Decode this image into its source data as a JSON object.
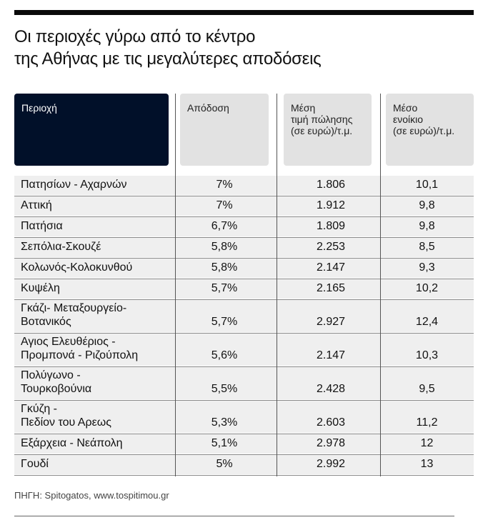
{
  "title": "Οι περιοχές γύρω από το κέντρο\nτης Αθήνας με τις μεγαλύτερες αποδόσεις",
  "title_lines": [
    "Οι περιοχές γύρω από το κέντρο",
    "της Αθήνας με τις μεγαλύτερες αποδόσεις"
  ],
  "header": {
    "area": "Περιοχή",
    "yield": "Απόδοση",
    "price": "Μέση\nτιμή πώλησης\n(σε ευρώ)/τ.μ.",
    "rent": "Μέσο\nενοίκιο\n(σε ευρώ)/τ.μ."
  },
  "header_color": "#011029",
  "rows": [
    {
      "area": "Πατησίων - Αχαρνών",
      "yield": "7%",
      "price": "1.806",
      "rent": "10,1"
    },
    {
      "area": "Αττική",
      "yield": "7%",
      "price": "1.912",
      "rent": "9,8"
    },
    {
      "area": "Πατήσια",
      "yield": "6,7%",
      "price": "1.809",
      "rent": "9,8"
    },
    {
      "area": "Σεπόλια-Σκουζέ",
      "yield": "5,8%",
      "price": "2.253",
      "rent": "8,5"
    },
    {
      "area": "Κολωνός-Κολοκυνθού",
      "yield": "5,8%",
      "price": "2.147",
      "rent": "9,3"
    },
    {
      "area": "Κυψέλη",
      "yield": "5,7%",
      "price": "2.165",
      "rent": "10,2"
    },
    {
      "area": "Γκάζι- Μεταξουργείο-\nΒοτανικός",
      "yield": "5,7%",
      "price": "2.927",
      "rent": "12,4"
    },
    {
      "area": "Αγιος Ελευθέριος -\nΠρομπονά - Ριζούπολη",
      "yield": "5,6%",
      "price": "2.147",
      "rent": "10,3"
    },
    {
      "area": "Πολύγωνο -\nΤουρκοβούνια",
      "yield": "5,5%",
      "price": "2.428",
      "rent": "9,5"
    },
    {
      "area": "Γκύζη -\nΠεδίον του Αρεως",
      "yield": "5,3%",
      "price": "2.603",
      "rent": "11,2"
    },
    {
      "area": "Εξάρχεια - Νεάπολη",
      "yield": "5,1%",
      "price": "2.978",
      "rent": "12"
    },
    {
      "area": "Γουδί",
      "yield": "5%",
      "price": "2.992",
      "rent": "13"
    }
  ],
  "source": "ΠΗΓΗ: Spitogatos, www.tospitimou.gr"
}
